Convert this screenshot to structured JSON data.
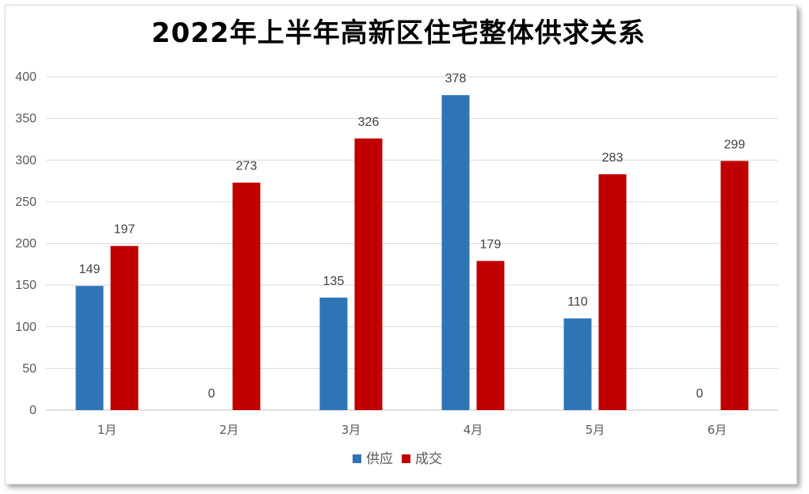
{
  "chart_data": {
    "type": "bar",
    "title": "2022年上半年高新区住宅整体供求关系",
    "xlabel": "",
    "ylabel": "",
    "categories": [
      "1月",
      "2月",
      "3月",
      "4月",
      "5月",
      "6月"
    ],
    "series": [
      {
        "name": "供应",
        "values": [
          149,
          0,
          135,
          378,
          110,
          0
        ],
        "color": "#2e75b6"
      },
      {
        "name": "成交",
        "values": [
          197,
          273,
          326,
          179,
          283,
          299
        ],
        "color": "#c00000"
      }
    ],
    "ylim": [
      0,
      400
    ],
    "yticks": [
      0,
      50,
      100,
      150,
      200,
      250,
      300,
      350,
      400
    ],
    "grid": true,
    "data_labels": true,
    "legend_position": "bottom"
  }
}
